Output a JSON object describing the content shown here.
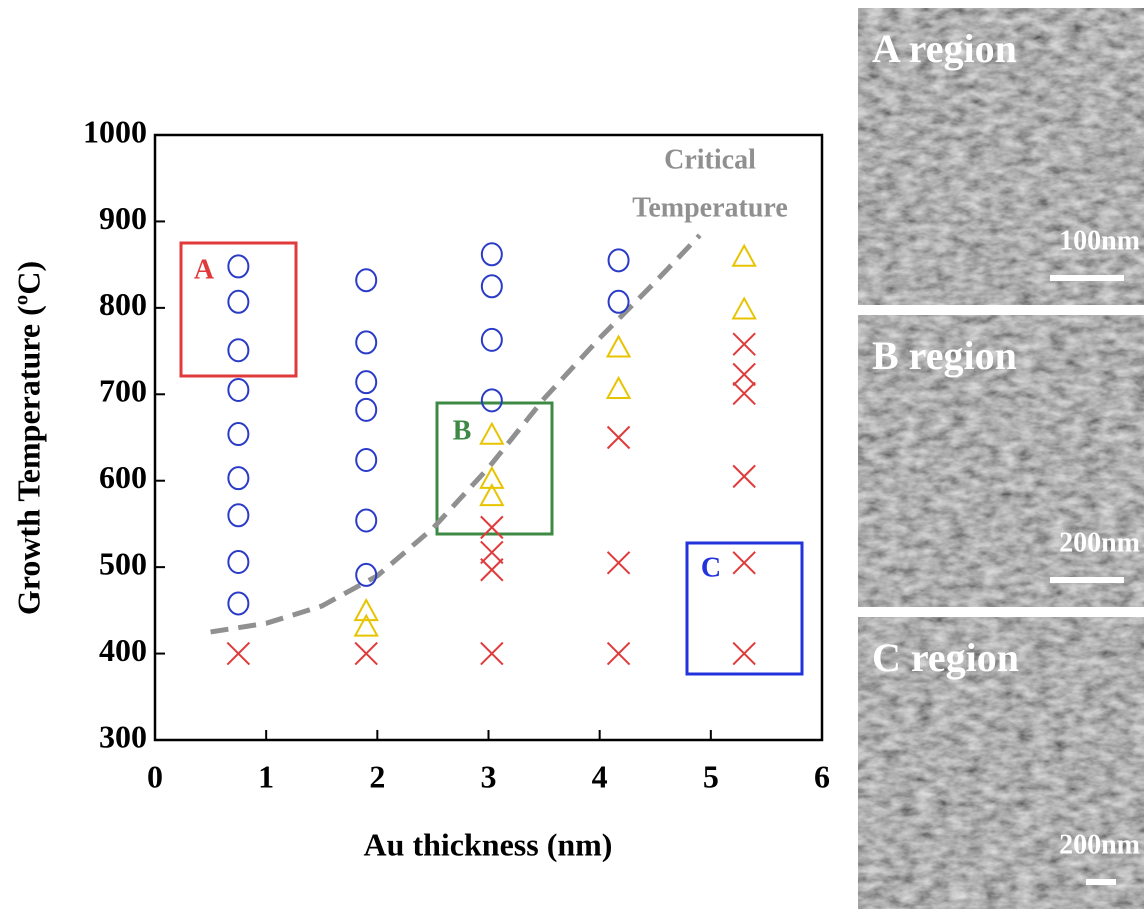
{
  "chart_data": {
    "type": "scatter",
    "xlabel": "Au thickness (nm)",
    "ylabel": "Growth Temperature (ºC)",
    "xlim": [
      0,
      6
    ],
    "ylim": [
      300,
      1000
    ],
    "xticks": [
      0,
      1,
      2,
      3,
      4,
      5,
      6
    ],
    "yticks": [
      300,
      400,
      500,
      600,
      700,
      800,
      900,
      1000
    ],
    "series": [
      {
        "marker": "circle",
        "color": "#2a3bc8",
        "x": [
          0.75,
          0.75,
          0.75,
          0.75,
          0.75,
          0.75,
          0.75,
          0.75,
          0.75,
          1.9,
          1.9,
          1.9,
          1.9,
          1.9,
          1.9,
          1.9,
          3.03,
          3.03,
          3.03,
          3.03,
          4.17,
          4.17
        ],
        "values": [
          848,
          807,
          751,
          705,
          654,
          603,
          560,
          506,
          458,
          832,
          760,
          714,
          682,
          624,
          554,
          491,
          862,
          825,
          763,
          693,
          855,
          807
        ]
      },
      {
        "marker": "triangle",
        "color": "#e8c400",
        "x": [
          1.9,
          1.9,
          3.03,
          3.03,
          3.03,
          4.17,
          4.17,
          5.3,
          5.3
        ],
        "values": [
          448,
          430,
          652,
          601,
          581,
          753,
          705,
          858,
          797
        ]
      },
      {
        "marker": "x",
        "color": "#e03a3a",
        "x": [
          0.75,
          1.9,
          3.03,
          3.03,
          3.03,
          3.03,
          4.17,
          4.17,
          4.17,
          5.3,
          5.3,
          5.3,
          5.3,
          5.3,
          5.3
        ],
        "values": [
          400,
          400,
          546,
          517,
          497,
          400,
          650,
          505,
          400,
          758,
          723,
          701,
          605,
          505,
          400
        ]
      }
    ],
    "boundary": {
      "label": [
        "Critical",
        "Temperature"
      ],
      "color": "#909090",
      "x": [
        0.5,
        1,
        1.5,
        2,
        2.5,
        3,
        3.5,
        4,
        4.5,
        4.9
      ],
      "values": [
        425,
        435,
        455,
        490,
        545,
        615,
        695,
        765,
        830,
        884
      ]
    },
    "regions": [
      {
        "label": "A",
        "color": "#e03a3a"
      },
      {
        "label": "B",
        "color": "#3c8a44"
      },
      {
        "label": "C",
        "color": "#2233dd"
      }
    ]
  },
  "images": [
    {
      "label": "A region",
      "scale": "100nm"
    },
    {
      "label": "B region",
      "scale": "200nm"
    },
    {
      "label": "C region",
      "scale": "200nm"
    }
  ]
}
